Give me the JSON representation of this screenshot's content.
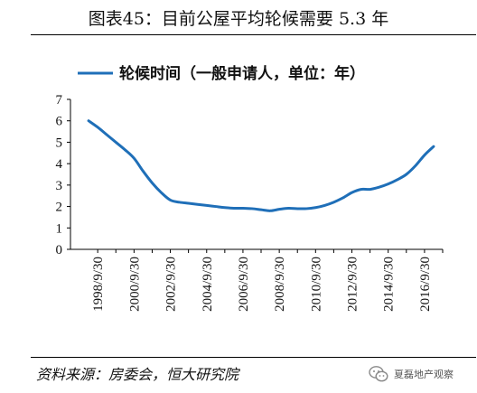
{
  "header": {
    "title": "图表45：目前公屋平均轮候需要 5.3 年"
  },
  "footer": {
    "source": "资料来源：房委会，恒大研究院",
    "brand": "夏磊地产观察"
  },
  "colors": {
    "series": "#1f6fb8",
    "axis": "#000000",
    "text": "#111111"
  },
  "chart_data": {
    "type": "line",
    "ylim": [
      0,
      7
    ],
    "yticks": [
      0,
      1,
      2,
      3,
      4,
      5,
      6,
      7
    ],
    "xlim": [
      "1997/3/31",
      "2017/9/30"
    ],
    "xtick_labels": [
      "1998/9/30",
      "2000/9/30",
      "2002/9/30",
      "2004/9/30",
      "2006/9/30",
      "2008/9/30",
      "2010/9/30",
      "2012/9/30",
      "2014/9/30",
      "2016/9/30"
    ],
    "xticks": [
      "1998/9/30",
      "1999/9/30",
      "2000/9/30",
      "2001/9/30",
      "2002/9/30",
      "2003/9/30",
      "2004/9/30",
      "2005/9/30",
      "2006/9/30",
      "2007/9/30",
      "2008/9/30",
      "2009/9/30",
      "2010/9/30",
      "2011/9/30",
      "2012/9/30",
      "2013/9/30",
      "2014/9/30",
      "2015/9/30",
      "2016/9/30",
      "2017/9/30"
    ],
    "legend": {
      "position": "top",
      "entries": [
        "轮候时间（一般申请人，单位：年）"
      ]
    },
    "series": [
      {
        "name": "轮候时间（一般申请人，单位：年）",
        "x": [
          "1998/3/31",
          "1998/9/30",
          "1999/3/31",
          "1999/9/30",
          "2000/3/31",
          "2000/9/30",
          "2001/3/31",
          "2001/9/30",
          "2002/3/31",
          "2002/9/30",
          "2003/3/31",
          "2003/9/30",
          "2004/3/31",
          "2004/9/30",
          "2005/3/31",
          "2005/9/30",
          "2006/3/31",
          "2006/9/30",
          "2007/3/31",
          "2007/9/30",
          "2008/3/31",
          "2008/9/30",
          "2009/3/31",
          "2009/9/30",
          "2010/3/31",
          "2010/9/30",
          "2011/3/31",
          "2011/9/30",
          "2012/3/31",
          "2012/9/30",
          "2013/3/31",
          "2013/9/30",
          "2014/3/31",
          "2014/9/30",
          "2015/3/31",
          "2015/9/30",
          "2016/3/31",
          "2016/9/30",
          "2017/3/31"
        ],
        "values": [
          6.0,
          5.7,
          5.35,
          5.0,
          4.65,
          4.25,
          3.65,
          3.1,
          2.65,
          2.3,
          2.2,
          2.15,
          2.1,
          2.05,
          2.0,
          1.95,
          1.92,
          1.92,
          1.9,
          1.85,
          1.8,
          1.87,
          1.92,
          1.9,
          1.9,
          1.95,
          2.05,
          2.2,
          2.4,
          2.65,
          2.8,
          2.8,
          2.9,
          3.05,
          3.25,
          3.5,
          3.9,
          4.4,
          4.8
        ]
      }
    ]
  }
}
